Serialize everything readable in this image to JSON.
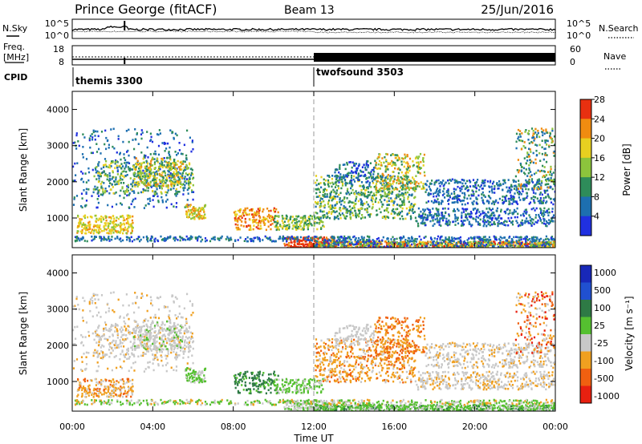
{
  "header": {
    "station": "Prince George (fitACF)",
    "beam": "Beam 13",
    "date": "25/Jun/2016"
  },
  "top_panels": {
    "nsky_label": "N.Sky",
    "nsearch_label": "N.Search",
    "noise_ticks_left": [
      "10^5",
      "10^0"
    ],
    "noise_ticks_right": [
      "10^5",
      "10^0"
    ],
    "freq_label_1": "Freq.",
    "freq_label_2": "[MHz]",
    "freq_ticks": [
      "18",
      "8"
    ],
    "nave_label": "Nave",
    "nave_ticks": [
      "60",
      "0"
    ],
    "cpid_label": "CPID",
    "cpid_segments": [
      {
        "name": "themis 3300",
        "start_h": 0,
        "end_h": 12
      },
      {
        "name": "twofsound 3503",
        "start_h": 12,
        "end_h": 24
      }
    ]
  },
  "chart_data": [
    {
      "type": "heatmap",
      "panel": "power",
      "ylabel": "Slant Range [km]",
      "xlabel": "",
      "ylim": [
        180,
        4500
      ],
      "yticks": [
        1000,
        2000,
        3000,
        4000
      ],
      "colorbar": {
        "label": "Power [dB]",
        "ticks": [
          "4",
          "8",
          "12",
          "16",
          "20",
          "24",
          "28"
        ],
        "colors": [
          "#2030e0",
          "#1d6fb0",
          "#2e8c5a",
          "#8cc43c",
          "#e8d020",
          "#f08c10",
          "#e83010"
        ]
      }
    },
    {
      "type": "heatmap",
      "panel": "velocity",
      "ylabel": "Slant Range [km]",
      "xlabel": "Time UT",
      "ylim": [
        180,
        4500
      ],
      "yticks": [
        1000,
        2000,
        3000,
        4000
      ],
      "xticks": [
        "00:00",
        "04:00",
        "08:00",
        "12:00",
        "16:00",
        "20:00",
        "00:00"
      ],
      "colorbar": {
        "label": "Velocity [m s⁻¹]",
        "ticks": [
          "1000",
          "500",
          "100",
          "25",
          "-25",
          "-100",
          "-500",
          "-1000"
        ],
        "colors": [
          "#1828b8",
          "#2050d0",
          "#2e7a45",
          "#55c030",
          "#c8c8c8",
          "#f0a020",
          "#f06010",
          "#e82010"
        ]
      }
    }
  ]
}
